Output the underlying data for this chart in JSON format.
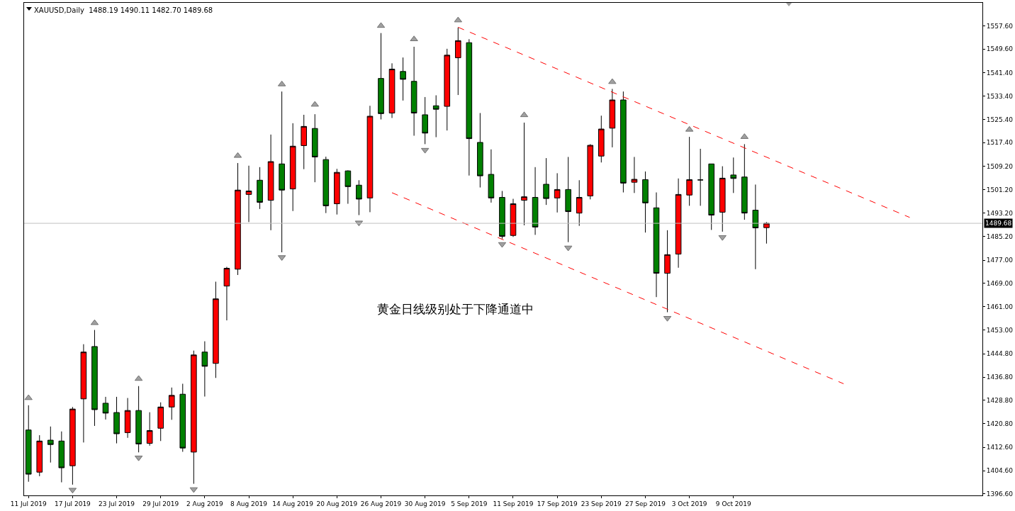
{
  "chart_data": {
    "type": "candlestick",
    "title": "XAUUSD,Daily  1488.19 1490.11 1482.70 1489.68",
    "categories": [
      "11 Jul 2019",
      null,
      null,
      null,
      "17 Jul 2019",
      null,
      null,
      null,
      "23 Jul 2019",
      null,
      null,
      null,
      "29 Jul 2019",
      null,
      null,
      null,
      "2 Aug 2019",
      null,
      null,
      null,
      "8 Aug 2019",
      null,
      null,
      null,
      "14 Aug 2019",
      null,
      null,
      null,
      "20 Aug 2019",
      null,
      null,
      null,
      "26 Aug 2019",
      null,
      null,
      null,
      "30 Aug 2019",
      null,
      null,
      null,
      "5 Sep 2019",
      null,
      null,
      null,
      "11 Sep 2019",
      null,
      null,
      null,
      "17 Sep 2019",
      null,
      null,
      null,
      "23 Sep 2019",
      null,
      null,
      null,
      "27 Sep 2019",
      null,
      null,
      null,
      "3 Oct 2019",
      null,
      null,
      null,
      "9 Oct 2019",
      null,
      null,
      null,
      null,
      null,
      null,
      null,
      null,
      null,
      null,
      null,
      null,
      null,
      null,
      null,
      null,
      null,
      null,
      null,
      null,
      null,
      null
    ],
    "ohlc": [
      [
        1418.6,
        1427.1,
        1400.8,
        1403.4
      ],
      [
        1404.1,
        1416.8,
        1402.7,
        1414.8
      ],
      [
        1415.1,
        1419.8,
        1407.4,
        1413.6
      ],
      [
        1414.8,
        1418.1,
        1400.6,
        1405.6
      ],
      [
        1406.3,
        1426.5,
        1399.8,
        1425.8
      ],
      [
        1429.3,
        1448.1,
        1414.3,
        1445.4
      ],
      [
        1447.3,
        1453.0,
        1420.0,
        1425.6
      ],
      [
        1427.8,
        1430.0,
        1422.2,
        1424.4
      ],
      [
        1424.6,
        1430.0,
        1414.0,
        1417.3
      ],
      [
        1417.7,
        1429.6,
        1415.9,
        1425.3
      ],
      [
        1425.3,
        1433.7,
        1410.9,
        1413.8
      ],
      [
        1414.0,
        1424.7,
        1413.2,
        1418.4
      ],
      [
        1419.2,
        1428.1,
        1414.8,
        1426.5
      ],
      [
        1426.5,
        1433.2,
        1422.1,
        1430.5
      ],
      [
        1430.9,
        1434.5,
        1411.1,
        1412.4
      ],
      [
        1411.0,
        1445.9,
        1400.1,
        1444.4
      ],
      [
        1445.4,
        1449.1,
        1430.1,
        1440.5
      ],
      [
        1441.5,
        1469.6,
        1436.5,
        1463.7
      ],
      [
        1468.1,
        1474.7,
        1456.3,
        1474.2
      ],
      [
        1473.9,
        1510.4,
        1471.9,
        1501.1
      ],
      [
        1499.6,
        1509.5,
        1490.1,
        1500.8
      ],
      [
        1504.5,
        1509.0,
        1494.6,
        1496.9
      ],
      [
        1497.6,
        1520.2,
        1487.3,
        1510.9
      ],
      [
        1510.1,
        1535.0,
        1479.7,
        1501.1
      ],
      [
        1501.5,
        1524.1,
        1493.9,
        1516.2
      ],
      [
        1516.4,
        1527.0,
        1508.3,
        1523.0
      ],
      [
        1522.3,
        1527.2,
        1503.8,
        1512.5
      ],
      [
        1511.6,
        1512.6,
        1493.2,
        1495.7
      ],
      [
        1496.4,
        1508.4,
        1492.7,
        1507.2
      ],
      [
        1507.7,
        1507.9,
        1496.4,
        1502.3
      ],
      [
        1502.8,
        1504.5,
        1492.5,
        1498.0
      ],
      [
        1498.4,
        1530.1,
        1493.5,
        1526.5
      ],
      [
        1539.5,
        1555.1,
        1525.4,
        1527.4
      ],
      [
        1527.6,
        1544.7,
        1525.9,
        1542.7
      ],
      [
        1541.9,
        1546.7,
        1531.9,
        1539.2
      ],
      [
        1538.5,
        1550.4,
        1519.8,
        1527.6
      ],
      [
        1527.0,
        1533.1,
        1516.9,
        1520.7
      ],
      [
        1530.1,
        1533.7,
        1519.3,
        1528.9
      ],
      [
        1529.9,
        1549.7,
        1521.6,
        1547.5
      ],
      [
        1546.6,
        1557.0,
        1533.8,
        1552.5
      ],
      [
        1551.8,
        1553.0,
        1506.1,
        1518.8
      ],
      [
        1517.5,
        1527.6,
        1502.0,
        1506.0
      ],
      [
        1506.5,
        1515.1,
        1496.8,
        1498.4
      ],
      [
        1498.6,
        1500.8,
        1484.4,
        1485.2
      ],
      [
        1485.5,
        1498.1,
        1485.0,
        1496.4
      ],
      [
        1497.6,
        1524.3,
        1489.0,
        1498.8
      ],
      [
        1498.6,
        1509.0,
        1485.7,
        1488.4
      ],
      [
        1503.1,
        1512.1,
        1496.0,
        1498.2
      ],
      [
        1498.4,
        1506.9,
        1493.4,
        1501.3
      ],
      [
        1501.3,
        1512.5,
        1483.2,
        1493.7
      ],
      [
        1493.2,
        1504.5,
        1488.8,
        1498.6
      ],
      [
        1499.1,
        1516.9,
        1497.9,
        1516.5
      ],
      [
        1512.8,
        1526.7,
        1510.6,
        1522.1
      ],
      [
        1522.4,
        1535.9,
        1515.8,
        1532.1
      ],
      [
        1532.1,
        1535.0,
        1500.3,
        1503.5
      ],
      [
        1503.8,
        1512.5,
        1500.1,
        1504.8
      ],
      [
        1504.7,
        1507.5,
        1486.5,
        1496.7
      ],
      [
        1495.0,
        1500.3,
        1464.3,
        1472.5
      ],
      [
        1472.5,
        1487.3,
        1459.1,
        1478.9
      ],
      [
        1479.1,
        1505.1,
        1474.4,
        1499.6
      ],
      [
        1499.4,
        1519.4,
        1495.7,
        1504.7
      ],
      [
        1504.6,
        1515.3,
        1495.7,
        1504.6
      ],
      [
        1510.1,
        1510.1,
        1487.4,
        1492.5
      ],
      [
        1493.5,
        1509.3,
        1486.8,
        1505.2
      ],
      [
        1506.3,
        1512.3,
        1500.1,
        1505.1
      ],
      [
        1505.6,
        1516.9,
        1490.9,
        1493.2
      ],
      [
        1494.2,
        1503.0,
        1473.9,
        1488.1
      ],
      [
        1488.19,
        1490.11,
        1482.7,
        1489.68
      ],
      null,
      null,
      null,
      null,
      null,
      null,
      null,
      null,
      null,
      null,
      null,
      null,
      null,
      null,
      null,
      null,
      null,
      null,
      null
    ],
    "colors": [
      "#008000",
      "#ff0000",
      "#008000",
      "#008000",
      "#ff0000",
      "#ff0000",
      "#008000",
      "#008000",
      "#008000",
      "#ff0000",
      "#008000",
      "#ff0000",
      "#ff0000",
      "#ff0000",
      "#008000",
      "#ff0000",
      "#008000",
      "#ff0000",
      "#ff0000",
      "#ff0000",
      "#ff0000",
      "#008000",
      "#ff0000",
      "#008000",
      "#ff0000",
      "#ff0000",
      "#008000",
      "#008000",
      "#ff0000",
      "#008000",
      "#008000",
      "#ff0000",
      "#008000",
      "#ff0000",
      "#008000",
      "#008000",
      "#008000",
      "#008000",
      "#ff0000",
      "#ff0000",
      "#008000",
      "#008000",
      "#008000",
      "#008000",
      "#ff0000",
      "#ff0000",
      "#008000",
      "#008000",
      "#ff0000",
      "#008000",
      "#ff0000",
      "#ff0000",
      "#ff0000",
      "#ff0000",
      "#008000",
      "#ff0000",
      "#008000",
      "#008000",
      "#ff0000",
      "#ff0000",
      "#ff0000",
      "#000000",
      "#008000",
      "#ff0000",
      "#008000",
      "#008000",
      "#008000",
      "#ff0000",
      null,
      null,
      null,
      null,
      null,
      null,
      null,
      null,
      null,
      null,
      null,
      null,
      null,
      null,
      null,
      null,
      null,
      null,
      null
    ],
    "series": [
      {
        "type": "line",
        "color": "#ff0000",
        "line_style": "dashed",
        "values": [
          null,
          null,
          null,
          null,
          null,
          null,
          null,
          null,
          null,
          null,
          null,
          null,
          null,
          null,
          null,
          null,
          null,
          null,
          null,
          null,
          null,
          null,
          null,
          null,
          null,
          null,
          null,
          null,
          null,
          null,
          null,
          null,
          null,
          null,
          null,
          null,
          null,
          null,
          null,
          1557.1,
          null,
          null,
          null,
          null,
          null,
          null,
          null,
          null,
          null,
          null,
          null,
          null,
          null,
          null,
          null,
          null,
          null,
          null,
          null,
          null,
          null,
          null,
          null,
          null,
          null,
          null,
          null,
          null,
          null,
          null,
          null,
          null,
          null,
          null,
          null,
          null,
          null,
          null,
          null,
          null,
          1491.7,
          null,
          null,
          null,
          null,
          null,
          null
        ]
      },
      {
        "type": "line",
        "color": "#ff0000",
        "line_style": "dashed",
        "values": [
          null,
          null,
          null,
          null,
          null,
          null,
          null,
          null,
          null,
          null,
          null,
          null,
          null,
          null,
          null,
          null,
          null,
          null,
          null,
          null,
          null,
          null,
          null,
          null,
          null,
          null,
          null,
          null,
          null,
          null,
          null,
          null,
          null,
          1500.2,
          null,
          null,
          null,
          null,
          null,
          null,
          null,
          null,
          null,
          null,
          null,
          null,
          null,
          null,
          null,
          null,
          null,
          null,
          null,
          null,
          null,
          null,
          null,
          null,
          null,
          null,
          null,
          null,
          null,
          null,
          null,
          null,
          null,
          null,
          null,
          null,
          null,
          null,
          null,
          null,
          1434.5,
          null,
          null,
          null,
          null,
          null,
          null,
          null,
          null,
          null,
          null,
          null,
          null
        ]
      },
      {
        "type": "scatter",
        "color": "#a0a0a0",
        "marker": "triangle",
        "values": [
          1429.6,
          null,
          null,
          null,
          null,
          null,
          1455.4,
          null,
          null,
          null,
          1436.2,
          null,
          null,
          null,
          null,
          null,
          null,
          null,
          null,
          1512.9,
          null,
          null,
          null,
          1537.5,
          null,
          null,
          1530.5,
          null,
          null,
          null,
          null,
          null,
          1557.6,
          null,
          null,
          1553.0,
          null,
          null,
          null,
          1559.5,
          null,
          null,
          null,
          null,
          null,
          1526.9,
          null,
          null,
          null,
          null,
          null,
          null,
          null,
          1538.3,
          null,
          null,
          null,
          null,
          null,
          null,
          1521.9,
          null,
          null,
          null,
          null,
          1519.4,
          null,
          null,
          null,
          null,
          null,
          null,
          null,
          null,
          null,
          null,
          null,
          null,
          null,
          null,
          null,
          null,
          null,
          null,
          null,
          null,
          null
        ]
      },
      {
        "type": "scatter",
        "color": "#a0a0a0",
        "marker": "triangle-down",
        "values": [
          null,
          null,
          null,
          null,
          1398.0,
          null,
          null,
          null,
          null,
          null,
          1409.1,
          null,
          null,
          null,
          null,
          1398.2,
          null,
          null,
          null,
          null,
          null,
          null,
          null,
          1478.0,
          null,
          null,
          null,
          null,
          null,
          null,
          1489.9,
          null,
          null,
          null,
          null,
          null,
          1514.9,
          null,
          null,
          null,
          null,
          null,
          null,
          1482.5,
          null,
          null,
          null,
          null,
          null,
          1481.3,
          null,
          null,
          null,
          null,
          null,
          null,
          null,
          null,
          1457.1,
          null,
          null,
          null,
          null,
          1484.9,
          null,
          null,
          null,
          null,
          null,
          null,
          null,
          null,
          null,
          null,
          null,
          null,
          null,
          null,
          null,
          null,
          null,
          null,
          null,
          null,
          null,
          null,
          null
        ]
      }
    ],
    "ylim": [
      1396.1,
      1565.5
    ],
    "yticks": [
      {
        "value": 1396.6,
        "label": "1396.60"
      },
      {
        "value": 1404.6,
        "label": "1404.60"
      },
      {
        "value": 1412.6,
        "label": "1412.60"
      },
      {
        "value": 1420.8,
        "label": "1420.80"
      },
      {
        "value": 1428.8,
        "label": "1428.80"
      },
      {
        "value": 1436.8,
        "label": "1436.80"
      },
      {
        "value": 1444.8,
        "label": "1444.80"
      },
      {
        "value": 1453.0,
        "label": "1453.00"
      },
      {
        "value": 1461.0,
        "label": "1461.00"
      },
      {
        "value": 1469.0,
        "label": "1469.00"
      },
      {
        "value": 1477.0,
        "label": "1477.00"
      },
      {
        "value": 1485.2,
        "label": "1485.20"
      },
      {
        "value": 1493.2,
        "label": "1493.20"
      },
      {
        "value": 1501.2,
        "label": "1501.20"
      },
      {
        "value": 1509.2,
        "label": "1509.20"
      },
      {
        "value": 1517.4,
        "label": "1517.40"
      },
      {
        "value": 1525.4,
        "label": "1525.40"
      },
      {
        "value": 1533.4,
        "label": "1533.40"
      },
      {
        "value": 1541.4,
        "label": "1541.40"
      },
      {
        "value": 1549.6,
        "label": "1549.60"
      },
      {
        "value": 1557.6,
        "label": "1557.60"
      }
    ],
    "ref_lines": [
      {
        "axis": "y",
        "value": 1489.68,
        "label": "1489.68",
        "color": "#c0c0c0"
      }
    ],
    "annotations": [
      "黄金日线级别处于下降通道中"
    ]
  }
}
